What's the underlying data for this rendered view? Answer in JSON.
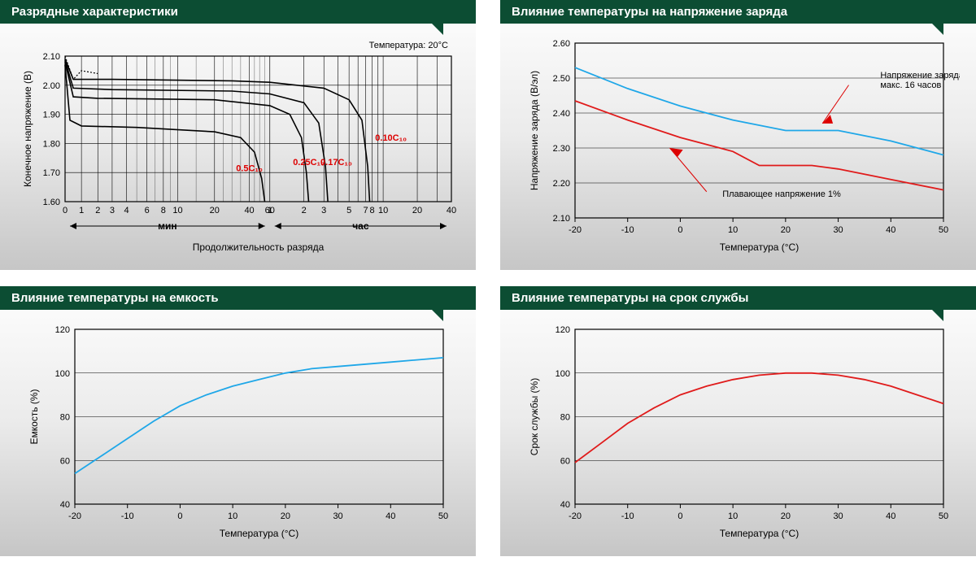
{
  "panels": {
    "discharge": {
      "title": "Разрядные характеристики",
      "note_temp": "Температура: 20°C",
      "ylabel": "Конечное напряжение (В)",
      "xlabel": "Продолжительность разряда",
      "min_label": "мин",
      "hour_label": "час",
      "yticks": [
        "1.60",
        "1.70",
        "1.80",
        "1.90",
        "2.00",
        "2.10"
      ],
      "xticks_min": [
        "0",
        "1",
        "2",
        "3",
        "4",
        "6",
        "8",
        "10",
        "20",
        "40",
        "60"
      ],
      "xticks_hr": [
        "1",
        "2",
        "3",
        "5",
        "7",
        "8",
        "10",
        "20",
        "40"
      ],
      "series_labels": {
        "c050": "0.5C₁₀",
        "c025": "0.25C₁₀",
        "c017": "0.17C₁₀",
        "c010": "0.10C₁₀"
      },
      "colors": {
        "line": "#000000",
        "series_label": "#cc0000"
      }
    },
    "charge_voltage": {
      "title": "Влияние температуры на напряжение заряда",
      "ylabel": "Напряжение заряда (В/эл)",
      "xlabel": "Температура (°C)",
      "yticks": [
        "2.10",
        "2.20",
        "2.30",
        "2.40",
        "2.50",
        "2.60"
      ],
      "xticks": [
        "-20",
        "-10",
        "0",
        "10",
        "20",
        "30",
        "40",
        "50"
      ],
      "series": {
        "upper": {
          "color": "#1fa7e8",
          "label_a": "Напряжение заряда",
          "label_b": "макс. 16 часов",
          "data": [
            [
              -20,
              2.53
            ],
            [
              -10,
              2.47
            ],
            [
              0,
              2.42
            ],
            [
              10,
              2.38
            ],
            [
              20,
              2.35
            ],
            [
              30,
              2.35
            ],
            [
              40,
              2.32
            ],
            [
              50,
              2.28
            ]
          ]
        },
        "lower": {
          "color": "#e01b1b",
          "label": "Плавающее напряжение 1%",
          "data": [
            [
              -20,
              2.435
            ],
            [
              -10,
              2.38
            ],
            [
              0,
              2.33
            ],
            [
              10,
              2.29
            ],
            [
              15,
              2.25
            ],
            [
              20,
              2.25
            ],
            [
              25,
              2.25
            ],
            [
              30,
              2.24
            ],
            [
              40,
              2.21
            ],
            [
              50,
              2.18
            ]
          ]
        }
      }
    },
    "capacity": {
      "title": "Влияние температуры на емкость",
      "ylabel": "Емкость (%)",
      "xlabel": "Температура (°C)",
      "yticks": [
        "40",
        "60",
        "80",
        "100",
        "120"
      ],
      "xticks": [
        "-20",
        "-10",
        "0",
        "10",
        "20",
        "30",
        "40",
        "50"
      ],
      "series": {
        "color": "#1fa7e8",
        "data": [
          [
            -20,
            54
          ],
          [
            -15,
            62
          ],
          [
            -10,
            70
          ],
          [
            -5,
            78
          ],
          [
            0,
            85
          ],
          [
            5,
            90
          ],
          [
            10,
            94
          ],
          [
            15,
            97
          ],
          [
            20,
            100
          ],
          [
            25,
            102
          ],
          [
            30,
            103
          ],
          [
            40,
            105
          ],
          [
            50,
            107
          ]
        ]
      }
    },
    "lifetime": {
      "title": "Влияние температуры на срок службы",
      "ylabel": "Срок службы (%)",
      "xlabel": "Температура (°C)",
      "yticks": [
        "40",
        "60",
        "80",
        "100",
        "120"
      ],
      "xticks": [
        "-20",
        "-10",
        "0",
        "10",
        "20",
        "30",
        "40",
        "50"
      ],
      "series": {
        "color": "#e01b1b",
        "data": [
          [
            -20,
            59
          ],
          [
            -15,
            68
          ],
          [
            -10,
            77
          ],
          [
            -5,
            84
          ],
          [
            0,
            90
          ],
          [
            5,
            94
          ],
          [
            10,
            97
          ],
          [
            15,
            99
          ],
          [
            20,
            100
          ],
          [
            25,
            100
          ],
          [
            30,
            99
          ],
          [
            35,
            97
          ],
          [
            40,
            94
          ],
          [
            45,
            90
          ],
          [
            50,
            86
          ]
        ]
      }
    }
  }
}
